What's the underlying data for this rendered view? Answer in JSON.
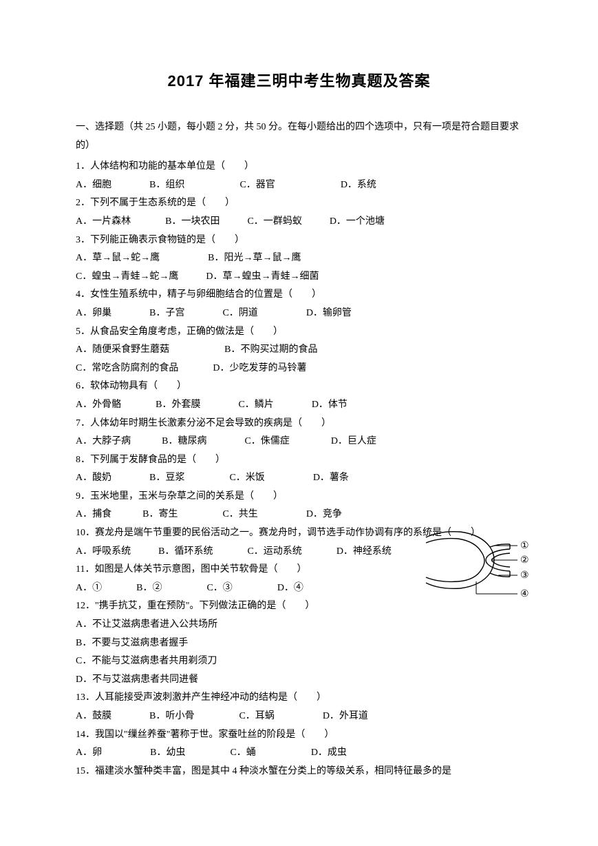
{
  "title": "2017 年福建三明中考生物真题及答案",
  "instructions": "一、选择题（共 25 小题，每小题 2 分，共 50 分。在每小题给出的四个选项中，只有一项是符合题目要求的）",
  "questions": [
    {
      "num": "1．",
      "text": "人体结构和功能的基本单位是（　　）",
      "opts": [
        "A．细胞",
        "B．组织",
        "C．器官",
        "D．系统"
      ],
      "gaps": [
        55,
        80,
        95,
        0
      ]
    },
    {
      "num": "2．",
      "text": "下列不属于生态系统的是（　　）",
      "opts": [
        "A．一片森林",
        "B．一块农田",
        "C．一群蚂蚁",
        "D．一个池塘"
      ],
      "gaps": [
        50,
        40,
        40,
        0
      ]
    },
    {
      "num": "3．",
      "text": "下列能正确表示食物链的是（　　）",
      "optsRows": [
        [
          "A．草→鼠→蛇→鹰",
          "B．阳光→草→鼠→鹰"
        ],
        [
          "C．蝗虫→青蛙→蛇→鹰",
          "D．草→蝗虫→青蛙→细菌"
        ]
      ],
      "gapsRows": [
        [
          70,
          0
        ],
        [
          40,
          0
        ]
      ]
    },
    {
      "num": "4．",
      "text": "女性生殖系统中，精子与卵细胞结合的位置是（　　）",
      "opts": [
        "A．卵巢",
        "B．子宫",
        "C．阴道",
        "D．输卵管"
      ],
      "gaps": [
        55,
        55,
        70,
        0
      ]
    },
    {
      "num": "5．",
      "text": "从食品安全角度考虑，正确的做法是（　　）",
      "optsRows": [
        [
          "A．随便采食野生蘑菇",
          "B．不购买过期的食品"
        ],
        [
          "C．常吃含防腐剂的食品",
          "D．少吃发芽的马铃薯"
        ]
      ],
      "gapsRows": [
        [
          80,
          0
        ],
        [
          50,
          0
        ]
      ]
    },
    {
      "num": "6．",
      "text": "软体动物具有（　　）",
      "opts": [
        "A．外骨骼",
        "B．外套膜",
        "C．鳞片",
        "D．体节"
      ],
      "gaps": [
        50,
        55,
        55,
        0
      ]
    },
    {
      "num": "7．",
      "text": "人体幼年时期生长激素分泌不足会导致的疾病是（　　）",
      "opts": [
        "A．大脖子病",
        "B．糖尿病",
        "C．侏儒症",
        "D．巨人症"
      ],
      "gaps": [
        45,
        55,
        60,
        0
      ]
    },
    {
      "num": "8．",
      "text": "下列属于发酵食品的是（　　）",
      "opts": [
        "A．酸奶",
        "B．豆浆",
        "C．米饭",
        "D．薯条"
      ],
      "gaps": [
        55,
        65,
        70,
        0
      ]
    },
    {
      "num": "9．",
      "text": "玉米地里，玉米与杂草之间的关系是（　　）",
      "opts": [
        "A．捕食",
        "B．寄生",
        "C．共生",
        "D．竞争"
      ],
      "gaps": [
        45,
        65,
        70,
        0
      ]
    },
    {
      "num": "10．",
      "text": "赛龙舟是端午节重要的民俗活动之一。赛龙舟时，调节选手动作协调有序的系统是（　　）",
      "opts": [
        "A．呼吸系统",
        "B．循环系统",
        "C．运动系统",
        "D．神经系统"
      ],
      "gaps": [
        40,
        50,
        50,
        0
      ]
    },
    {
      "num": "11．",
      "text": "如图是人体关节示意图，图中关节软骨是（　　）",
      "opts": [
        "A．①",
        "B．②",
        "C．③",
        "D．④"
      ],
      "gaps": [
        50,
        65,
        65,
        0
      ],
      "narrow": true
    },
    {
      "num": "12．",
      "text": "\"携手抗艾，重在预防\"。下列做法正确的是（　　）",
      "optsLines": [
        "A．不让艾滋病患者进入公共场所",
        "B．不要与艾滋病患者握手",
        "C．不能与艾滋病患者共用剃须刀",
        "D．不与艾滋病患者共同进餐"
      ],
      "narrow": true
    },
    {
      "num": "13．",
      "text": "人耳能接受声波刺激并产生神经冲动的结构是（　　）",
      "opts": [
        "A．鼓膜",
        "B．听小骨",
        "C．耳蜗",
        "D．外耳道"
      ],
      "gaps": [
        55,
        65,
        70,
        0
      ]
    },
    {
      "num": "14．",
      "text": "我国以\"缫丝养蚕\"著称于世。家蚕吐丝的阶段是（　　）",
      "opts": [
        "A．卵",
        "B．幼虫",
        "C．蛹",
        "D．成虫"
      ],
      "gaps": [
        70,
        65,
        80,
        0
      ]
    },
    {
      "num": "15．",
      "text": "福建淡水蟹种类丰富，图是其中 4 种淡水蟹在分类上的等级关系，相同特征最多的是",
      "opts": [],
      "gaps": []
    }
  ],
  "diagram": {
    "labels": [
      "①",
      "②",
      "③",
      "④"
    ],
    "label_font_size": 14,
    "stroke_color": "#000000",
    "stroke_width": 1.4,
    "fill_color": "#ffffff",
    "width": 160,
    "height": 120
  },
  "colors": {
    "text": "#000000",
    "background": "#ffffff"
  }
}
